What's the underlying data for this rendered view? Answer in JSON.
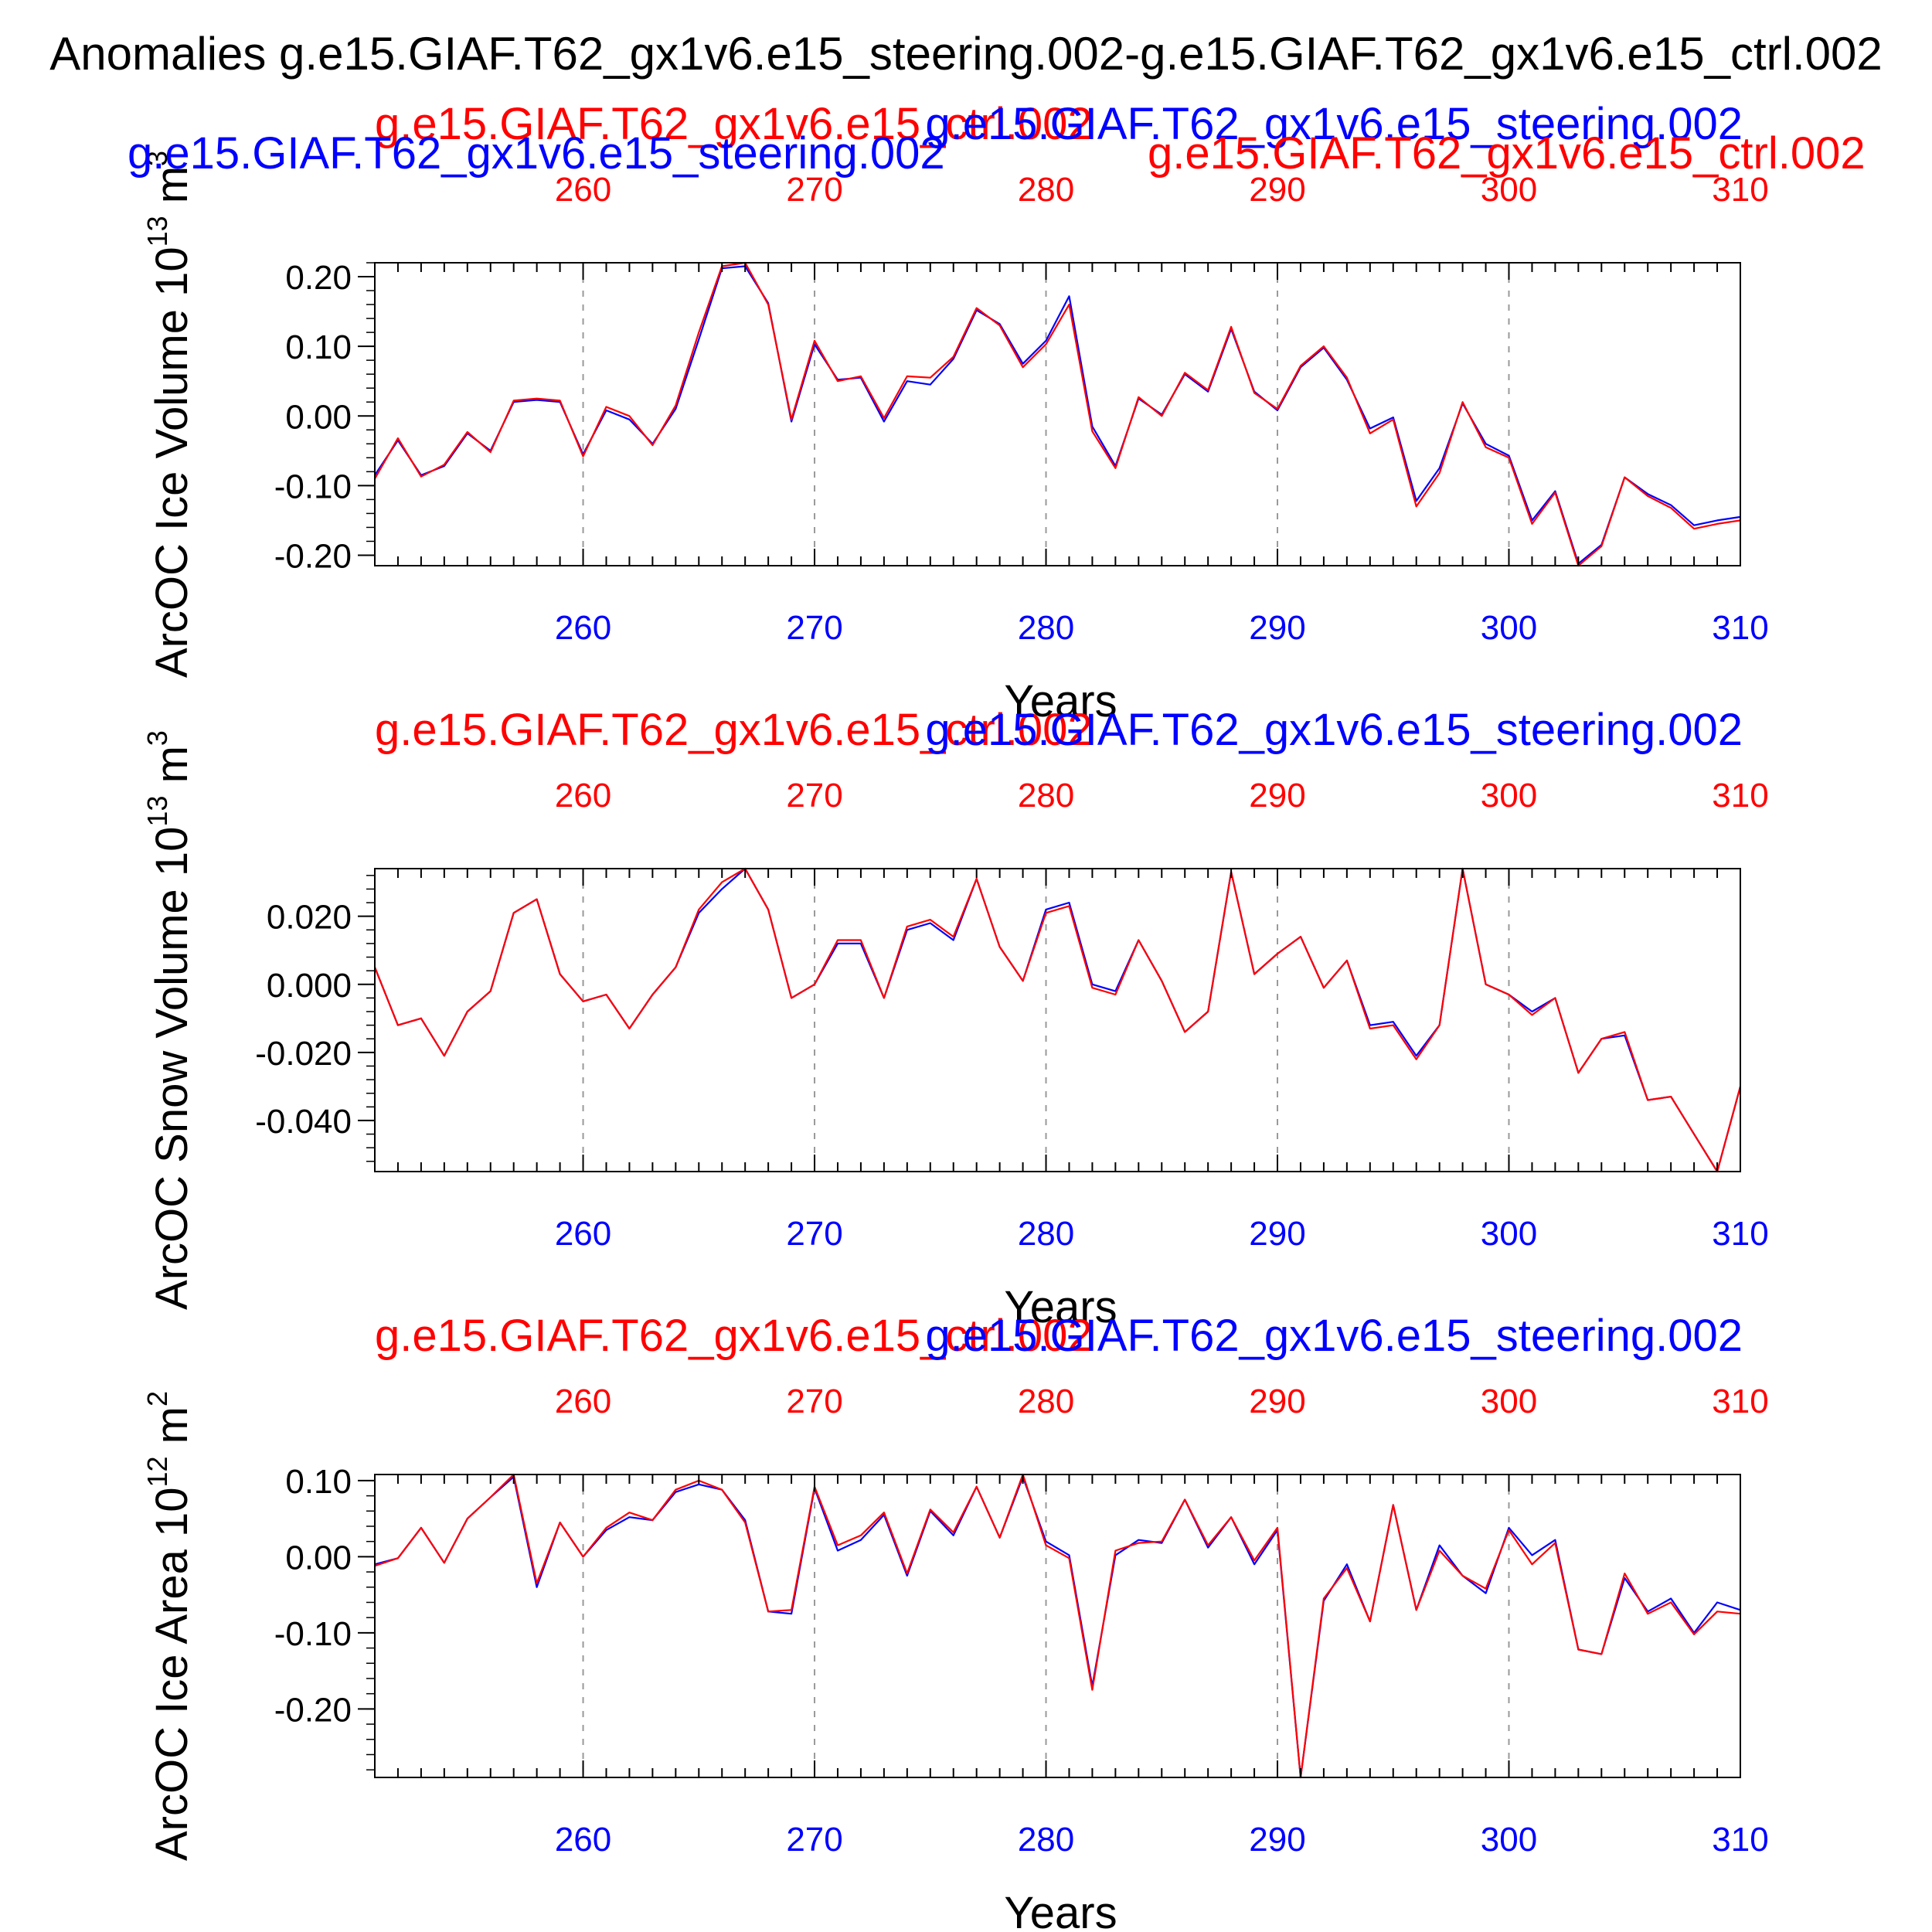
{
  "figure_title": "Anomalies g.e15.GIAF.T62_gx1v6.e15_steering.002-g.e15.GIAF.T62_gx1v6.e15_ctrl.002",
  "colors": {
    "exp": "#0000ff",
    "ctrl": "#ff0000",
    "axis": "#000000",
    "grid": "#999999"
  },
  "series_names": {
    "ctrl": "g.e15.GIAF.T62_gx1v6.e15_ctrl.002",
    "exp": "g.e15.GIAF.T62_gx1v6.e15_steering.002"
  },
  "chart_data": [
    {
      "type": "line",
      "id": "ice-volume",
      "ylabel": "ArcOC Ice Volume 10",
      "ylabel_exp": "13",
      "ylabel_unit_base": "m",
      "ylabel_unit_exp": "3",
      "xlabel": "Years",
      "xlim": [
        251,
        310
      ],
      "ylim": [
        -0.215,
        0.22
      ],
      "xticks": [
        260,
        270,
        280,
        290,
        300,
        310
      ],
      "yticks": [
        0.2,
        0.1,
        0.0,
        -0.1,
        -0.2
      ],
      "ytick_labels": [
        "0.20",
        "0.10",
        "0.00",
        "-0.10",
        "-0.20"
      ],
      "x": [
        251,
        252,
        253,
        254,
        255,
        256,
        257,
        258,
        259,
        260,
        261,
        262,
        263,
        264,
        265,
        266,
        267,
        268,
        269,
        270,
        271,
        272,
        273,
        274,
        275,
        276,
        277,
        278,
        279,
        280,
        281,
        282,
        283,
        284,
        285,
        286,
        287,
        288,
        289,
        290,
        291,
        292,
        293,
        294,
        295,
        296,
        297,
        298,
        299,
        300,
        301,
        302,
        303,
        304,
        305,
        306,
        307,
        308,
        309,
        310
      ],
      "series": [
        {
          "name": "g.e15.GIAF.T62_gx1v6.e15_steering.002",
          "key": "exp",
          "values": [
            -0.085,
            -0.035,
            -0.085,
            -0.072,
            -0.025,
            -0.05,
            0.02,
            0.023,
            0.02,
            -0.055,
            0.008,
            -0.005,
            -0.04,
            0.01,
            0.11,
            0.212,
            0.215,
            0.162,
            -0.008,
            0.103,
            0.052,
            0.055,
            -0.008,
            0.05,
            0.045,
            0.082,
            0.152,
            0.132,
            0.075,
            0.108,
            0.172,
            -0.015,
            -0.072,
            0.025,
            0.002,
            0.06,
            0.035,
            0.125,
            0.035,
            0.008,
            0.07,
            0.098,
            0.052,
            -0.018,
            -0.002,
            -0.122,
            -0.075,
            0.018,
            -0.04,
            -0.057,
            -0.15,
            -0.108,
            -0.212,
            -0.185,
            -0.088,
            -0.112,
            -0.128,
            -0.157,
            -0.15,
            -0.145
          ]
        },
        {
          "name": "g.e15.GIAF.T62_gx1v6.e15_ctrl.002",
          "key": "ctrl",
          "values": [
            -0.09,
            -0.032,
            -0.087,
            -0.07,
            -0.023,
            -0.052,
            0.022,
            0.025,
            0.022,
            -0.058,
            0.013,
            0.0,
            -0.042,
            0.015,
            0.12,
            0.215,
            0.22,
            0.16,
            -0.005,
            0.108,
            0.05,
            0.057,
            -0.003,
            0.057,
            0.055,
            0.085,
            0.155,
            0.13,
            0.07,
            0.103,
            0.16,
            -0.022,
            -0.075,
            0.027,
            0.0,
            0.062,
            0.037,
            0.128,
            0.033,
            0.01,
            0.072,
            0.1,
            0.055,
            -0.025,
            -0.005,
            -0.13,
            -0.082,
            0.02,
            -0.045,
            -0.06,
            -0.155,
            -0.11,
            -0.215,
            -0.187,
            -0.088,
            -0.115,
            -0.132,
            -0.162,
            -0.155,
            -0.15
          ]
        }
      ]
    },
    {
      "type": "line",
      "id": "snow-volume",
      "ylabel": "ArcOC Snow Volume 10",
      "ylabel_exp": "13",
      "ylabel_unit_base": "m",
      "ylabel_unit_exp": "3",
      "xlabel": "Years",
      "xlim": [
        251,
        310
      ],
      "ylim": [
        -0.055,
        0.034
      ],
      "xticks": [
        260,
        270,
        280,
        290,
        300,
        310
      ],
      "yticks": [
        0.02,
        0.0,
        -0.02,
        -0.04
      ],
      "ytick_labels": [
        "0.020",
        "0.000",
        "-0.020",
        "-0.040"
      ],
      "x": [
        251,
        252,
        253,
        254,
        255,
        256,
        257,
        258,
        259,
        260,
        261,
        262,
        263,
        264,
        265,
        266,
        267,
        268,
        269,
        270,
        271,
        272,
        273,
        274,
        275,
        276,
        277,
        278,
        279,
        280,
        281,
        282,
        283,
        284,
        285,
        286,
        287,
        288,
        289,
        290,
        291,
        292,
        293,
        294,
        295,
        296,
        297,
        298,
        299,
        300,
        301,
        302,
        303,
        304,
        305,
        306,
        307,
        308,
        309,
        310
      ],
      "series": [
        {
          "name": "g.e15.GIAF.T62_gx1v6.e15_steering.002",
          "key": "exp",
          "values": [
            0.005,
            -0.012,
            -0.01,
            -0.021,
            -0.008,
            -0.002,
            0.021,
            0.025,
            0.003,
            -0.005,
            -0.003,
            -0.013,
            -0.003,
            0.005,
            0.021,
            0.028,
            0.034,
            0.022,
            -0.004,
            0.0,
            0.012,
            0.012,
            -0.004,
            0.016,
            0.018,
            0.013,
            0.031,
            0.011,
            0.001,
            0.022,
            0.024,
            0.0,
            -0.002,
            0.013,
            0.001,
            -0.014,
            -0.008,
            0.033,
            0.003,
            0.009,
            0.014,
            -0.001,
            0.007,
            -0.012,
            -0.011,
            -0.021,
            -0.012,
            0.034,
            0.0,
            -0.003,
            -0.008,
            -0.004,
            -0.026,
            -0.016,
            -0.015,
            -0.034,
            -0.033,
            -0.044,
            -0.055,
            -0.03
          ]
        },
        {
          "name": "g.e15.GIAF.T62_gx1v6.e15_ctrl.002",
          "key": "ctrl",
          "values": [
            0.005,
            -0.012,
            -0.01,
            -0.021,
            -0.008,
            -0.002,
            0.021,
            0.025,
            0.003,
            -0.005,
            -0.003,
            -0.013,
            -0.003,
            0.005,
            0.022,
            0.03,
            0.034,
            0.022,
            -0.004,
            0.0,
            0.013,
            0.013,
            -0.004,
            0.017,
            0.019,
            0.014,
            0.031,
            0.011,
            0.001,
            0.021,
            0.023,
            -0.001,
            -0.003,
            0.013,
            0.001,
            -0.014,
            -0.008,
            0.033,
            0.003,
            0.009,
            0.014,
            -0.001,
            0.007,
            -0.013,
            -0.012,
            -0.022,
            -0.012,
            0.034,
            0.0,
            -0.003,
            -0.009,
            -0.004,
            -0.026,
            -0.016,
            -0.014,
            -0.034,
            -0.033,
            -0.044,
            -0.055,
            -0.03
          ]
        }
      ]
    },
    {
      "type": "line",
      "id": "ice-area",
      "ylabel": "ArcOC Ice Area 10",
      "ylabel_exp": "12",
      "ylabel_unit_base": "m",
      "ylabel_unit_exp": "2",
      "xlabel": "Years",
      "xlim": [
        251,
        310
      ],
      "ylim": [
        -0.29,
        0.108
      ],
      "xticks": [
        260,
        270,
        280,
        290,
        300,
        310
      ],
      "yticks": [
        0.1,
        0.0,
        -0.1,
        -0.2
      ],
      "ytick_labels": [
        "0.10",
        "0.00",
        "-0.10",
        "-0.20"
      ],
      "x": [
        251,
        252,
        253,
        254,
        255,
        256,
        257,
        258,
        259,
        260,
        261,
        262,
        263,
        264,
        265,
        266,
        267,
        268,
        269,
        270,
        271,
        272,
        273,
        274,
        275,
        276,
        277,
        278,
        279,
        280,
        281,
        282,
        283,
        284,
        285,
        286,
        287,
        288,
        289,
        290,
        291,
        292,
        293,
        294,
        295,
        296,
        297,
        298,
        299,
        300,
        301,
        302,
        303,
        304,
        305,
        306,
        307,
        308,
        309,
        310
      ],
      "series": [
        {
          "name": "g.e15.GIAF.T62_gx1v6.e15_steering.002",
          "key": "exp",
          "values": [
            -0.01,
            -0.002,
            0.038,
            -0.008,
            0.05,
            0.078,
            0.105,
            -0.04,
            0.045,
            0.0,
            0.035,
            0.052,
            0.048,
            0.085,
            0.095,
            0.088,
            0.048,
            -0.072,
            -0.075,
            0.09,
            0.008,
            0.022,
            0.055,
            -0.025,
            0.06,
            0.028,
            0.092,
            0.025,
            0.105,
            0.02,
            0.002,
            -0.17,
            0.002,
            0.022,
            0.018,
            0.075,
            0.012,
            0.052,
            -0.01,
            0.035,
            -0.29,
            -0.058,
            -0.01,
            -0.085,
            0.068,
            -0.07,
            0.015,
            -0.025,
            -0.048,
            0.038,
            0.002,
            0.022,
            -0.122,
            -0.128,
            -0.028,
            -0.072,
            -0.055,
            -0.1,
            -0.06,
            -0.07
          ]
        },
        {
          "name": "g.e15.GIAF.T62_gx1v6.e15_ctrl.002",
          "key": "ctrl",
          "values": [
            -0.012,
            -0.002,
            0.038,
            -0.008,
            0.05,
            0.078,
            0.108,
            -0.035,
            0.045,
            0.0,
            0.038,
            0.058,
            0.048,
            0.088,
            0.1,
            0.088,
            0.045,
            -0.072,
            -0.07,
            0.092,
            0.015,
            0.028,
            0.058,
            -0.022,
            0.062,
            0.032,
            0.092,
            0.025,
            0.108,
            0.015,
            -0.002,
            -0.175,
            0.008,
            0.018,
            0.02,
            0.075,
            0.015,
            0.052,
            -0.005,
            0.038,
            -0.29,
            -0.055,
            -0.015,
            -0.085,
            0.068,
            -0.07,
            0.008,
            -0.025,
            -0.042,
            0.035,
            -0.01,
            0.018,
            -0.122,
            -0.128,
            -0.022,
            -0.075,
            -0.06,
            -0.102,
            -0.072,
            -0.075
          ]
        }
      ]
    }
  ]
}
